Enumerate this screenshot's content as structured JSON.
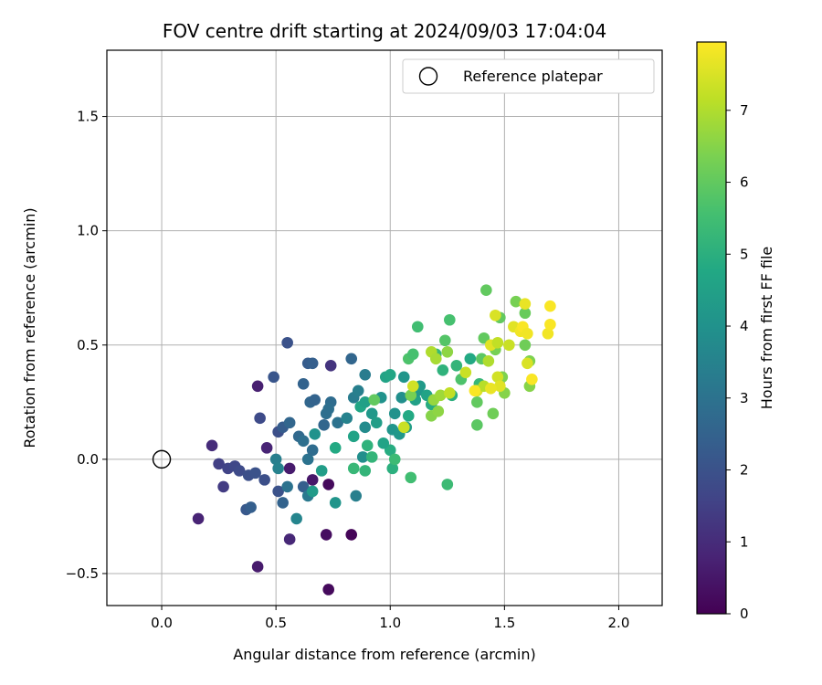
{
  "chart_data": {
    "type": "scatter",
    "title": "FOV centre drift starting at 2024/09/03 17:04:04",
    "xlabel": "Angular distance from reference (arcmin)",
    "ylabel": "Rotation from reference (arcmin)",
    "xlim": [
      -0.24,
      2.19
    ],
    "ylim": [
      -0.64,
      1.79
    ],
    "xticks": [
      0.0,
      0.5,
      1.0,
      1.5,
      2.0
    ],
    "xtick_labels": [
      "0.0",
      "0.5",
      "1.0",
      "1.5",
      "2.0"
    ],
    "yticks": [
      -0.5,
      0.0,
      0.5,
      1.0,
      1.5
    ],
    "ytick_labels": [
      "−0.5",
      "0.0",
      "0.5",
      "1.0",
      "1.5"
    ],
    "grid": true,
    "legend": {
      "placement": "top-right",
      "label": "Reference platepar"
    },
    "reference_point": {
      "x": 0.0,
      "y": 0.0
    },
    "colorbar": {
      "label": "Hours from first FF file",
      "range": [
        0,
        7.95
      ],
      "ticks": [
        0,
        1,
        2,
        3,
        4,
        5,
        6,
        7
      ],
      "colormap": "viridis"
    },
    "points": [
      {
        "x": 0.73,
        "y": -0.57,
        "c": 0.2
      },
      {
        "x": 0.42,
        "y": -0.47,
        "c": 0.6
      },
      {
        "x": 0.56,
        "y": -0.35,
        "c": 0.9
      },
      {
        "x": 0.72,
        "y": -0.33,
        "c": 0.3
      },
      {
        "x": 0.83,
        "y": -0.33,
        "c": 0.1
      },
      {
        "x": 0.16,
        "y": -0.26,
        "c": 0.8
      },
      {
        "x": 0.73,
        "y": -0.11,
        "c": 0.2
      },
      {
        "x": 0.66,
        "y": -0.09,
        "c": 0.5
      },
      {
        "x": 0.56,
        "y": -0.04,
        "c": 0.6
      },
      {
        "x": 0.22,
        "y": 0.06,
        "c": 1.0
      },
      {
        "x": 0.46,
        "y": 0.05,
        "c": 0.8
      },
      {
        "x": 0.42,
        "y": 0.32,
        "c": 0.7
      },
      {
        "x": 0.74,
        "y": 0.41,
        "c": 1.2
      },
      {
        "x": 0.27,
        "y": -0.12,
        "c": 1.4
      },
      {
        "x": 0.25,
        "y": -0.02,
        "c": 1.5
      },
      {
        "x": 0.29,
        "y": -0.04,
        "c": 1.6
      },
      {
        "x": 0.32,
        "y": -0.03,
        "c": 1.7
      },
      {
        "x": 0.34,
        "y": -0.05,
        "c": 1.8
      },
      {
        "x": 0.38,
        "y": -0.07,
        "c": 1.9
      },
      {
        "x": 0.41,
        "y": -0.06,
        "c": 2.0
      },
      {
        "x": 0.37,
        "y": -0.22,
        "c": 2.2
      },
      {
        "x": 0.39,
        "y": -0.21,
        "c": 2.4
      },
      {
        "x": 0.45,
        "y": -0.09,
        "c": 1.9
      },
      {
        "x": 0.51,
        "y": -0.14,
        "c": 2.0
      },
      {
        "x": 0.53,
        "y": -0.19,
        "c": 2.5
      },
      {
        "x": 0.43,
        "y": 0.18,
        "c": 1.8
      },
      {
        "x": 0.49,
        "y": 0.36,
        "c": 2.1
      },
      {
        "x": 0.55,
        "y": 0.51,
        "c": 2.0
      },
      {
        "x": 0.51,
        "y": 0.12,
        "c": 1.9
      },
      {
        "x": 0.53,
        "y": 0.14,
        "c": 2.3
      },
      {
        "x": 0.56,
        "y": 0.16,
        "c": 2.6
      },
      {
        "x": 0.6,
        "y": 0.1,
        "c": 2.7
      },
      {
        "x": 0.62,
        "y": 0.08,
        "c": 2.9
      },
      {
        "x": 0.64,
        "y": 0.0,
        "c": 3.0
      },
      {
        "x": 0.66,
        "y": 0.04,
        "c": 2.8
      },
      {
        "x": 0.62,
        "y": -0.12,
        "c": 2.4
      },
      {
        "x": 0.64,
        "y": -0.16,
        "c": 3.2
      },
      {
        "x": 0.55,
        "y": -0.12,
        "c": 3.0
      },
      {
        "x": 0.5,
        "y": 0.0,
        "c": 3.4
      },
      {
        "x": 0.51,
        "y": -0.04,
        "c": 3.5
      },
      {
        "x": 0.59,
        "y": -0.26,
        "c": 3.6
      },
      {
        "x": 0.62,
        "y": 0.33,
        "c": 2.5
      },
      {
        "x": 0.64,
        "y": 0.42,
        "c": 2.3
      },
      {
        "x": 0.66,
        "y": 0.42,
        "c": 2.4
      },
      {
        "x": 0.65,
        "y": 0.25,
        "c": 2.6
      },
      {
        "x": 0.67,
        "y": 0.26,
        "c": 2.5
      },
      {
        "x": 0.71,
        "y": 0.15,
        "c": 2.6
      },
      {
        "x": 0.72,
        "y": 0.2,
        "c": 2.9
      },
      {
        "x": 0.74,
        "y": 0.25,
        "c": 2.8
      },
      {
        "x": 0.73,
        "y": 0.22,
        "c": 2.9
      },
      {
        "x": 0.77,
        "y": 0.16,
        "c": 3.0
      },
      {
        "x": 0.81,
        "y": 0.18,
        "c": 3.5
      },
      {
        "x": 0.84,
        "y": 0.27,
        "c": 3.3
      },
      {
        "x": 0.83,
        "y": 0.44,
        "c": 2.6
      },
      {
        "x": 0.89,
        "y": 0.37,
        "c": 3.3
      },
      {
        "x": 0.86,
        "y": 0.3,
        "c": 3.4
      },
      {
        "x": 0.89,
        "y": 0.14,
        "c": 3.8
      },
      {
        "x": 0.88,
        "y": 0.01,
        "c": 3.9
      },
      {
        "x": 0.85,
        "y": -0.16,
        "c": 3.4
      },
      {
        "x": 0.76,
        "y": -0.19,
        "c": 4.1
      },
      {
        "x": 0.7,
        "y": -0.05,
        "c": 4.4
      },
      {
        "x": 0.66,
        "y": -0.14,
        "c": 4.3
      },
      {
        "x": 0.67,
        "y": 0.11,
        "c": 4.0
      },
      {
        "x": 0.76,
        "y": 0.05,
        "c": 4.8
      },
      {
        "x": 0.84,
        "y": 0.1,
        "c": 4.6
      },
      {
        "x": 0.87,
        "y": 0.23,
        "c": 4.7
      },
      {
        "x": 0.89,
        "y": 0.25,
        "c": 4.5
      },
      {
        "x": 0.92,
        "y": 0.2,
        "c": 4.2
      },
      {
        "x": 0.94,
        "y": 0.16,
        "c": 4.4
      },
      {
        "x": 0.96,
        "y": 0.27,
        "c": 4.0
      },
      {
        "x": 0.98,
        "y": 0.36,
        "c": 4.6
      },
      {
        "x": 1.0,
        "y": 0.37,
        "c": 4.7
      },
      {
        "x": 1.01,
        "y": 0.13,
        "c": 4.1
      },
      {
        "x": 1.02,
        "y": 0.2,
        "c": 4.0
      },
      {
        "x": 1.04,
        "y": 0.11,
        "c": 4.2
      },
      {
        "x": 1.05,
        "y": 0.27,
        "c": 3.9
      },
      {
        "x": 1.06,
        "y": 0.36,
        "c": 4.1
      },
      {
        "x": 1.08,
        "y": 0.19,
        "c": 4.8
      },
      {
        "x": 1.07,
        "y": 0.14,
        "c": 4.4
      },
      {
        "x": 1.0,
        "y": 0.04,
        "c": 4.9
      },
      {
        "x": 0.97,
        "y": 0.07,
        "c": 4.6
      },
      {
        "x": 0.9,
        "y": 0.06,
        "c": 5.1
      },
      {
        "x": 0.92,
        "y": 0.01,
        "c": 5.2
      },
      {
        "x": 0.84,
        "y": -0.04,
        "c": 5.3
      },
      {
        "x": 0.89,
        "y": -0.05,
        "c": 5.2
      },
      {
        "x": 1.01,
        "y": -0.04,
        "c": 5.0
      },
      {
        "x": 1.02,
        "y": 0.0,
        "c": 5.4
      },
      {
        "x": 1.09,
        "y": -0.08,
        "c": 5.5
      },
      {
        "x": 1.25,
        "y": -0.11,
        "c": 5.4
      },
      {
        "x": 1.08,
        "y": 0.44,
        "c": 5.7
      },
      {
        "x": 1.1,
        "y": 0.46,
        "c": 5.6
      },
      {
        "x": 1.12,
        "y": 0.58,
        "c": 5.5
      },
      {
        "x": 1.11,
        "y": 0.26,
        "c": 4.5
      },
      {
        "x": 1.12,
        "y": 0.3,
        "c": 4.2
      },
      {
        "x": 1.13,
        "y": 0.32,
        "c": 4.3
      },
      {
        "x": 1.16,
        "y": 0.28,
        "c": 4.6
      },
      {
        "x": 1.18,
        "y": 0.24,
        "c": 4.9
      },
      {
        "x": 1.2,
        "y": 0.46,
        "c": 5.3
      },
      {
        "x": 1.23,
        "y": 0.39,
        "c": 5.1
      },
      {
        "x": 1.24,
        "y": 0.52,
        "c": 5.8
      },
      {
        "x": 1.26,
        "y": 0.61,
        "c": 5.6
      },
      {
        "x": 1.27,
        "y": 0.28,
        "c": 5.0
      },
      {
        "x": 1.29,
        "y": 0.41,
        "c": 5.2
      },
      {
        "x": 1.31,
        "y": 0.35,
        "c": 5.7
      },
      {
        "x": 1.35,
        "y": 0.44,
        "c": 4.8
      },
      {
        "x": 1.38,
        "y": 0.15,
        "c": 5.9
      },
      {
        "x": 1.38,
        "y": 0.25,
        "c": 6.0
      },
      {
        "x": 1.39,
        "y": 0.33,
        "c": 5.3
      },
      {
        "x": 1.4,
        "y": 0.44,
        "c": 5.9
      },
      {
        "x": 1.41,
        "y": 0.53,
        "c": 6.0
      },
      {
        "x": 1.42,
        "y": 0.74,
        "c": 6.0
      },
      {
        "x": 1.45,
        "y": 0.2,
        "c": 6.2
      },
      {
        "x": 1.46,
        "y": 0.48,
        "c": 6.3
      },
      {
        "x": 1.48,
        "y": 0.62,
        "c": 6.0
      },
      {
        "x": 1.49,
        "y": 0.36,
        "c": 6.4
      },
      {
        "x": 1.5,
        "y": 0.29,
        "c": 6.5
      },
      {
        "x": 1.55,
        "y": 0.69,
        "c": 6.3
      },
      {
        "x": 1.59,
        "y": 0.64,
        "c": 6.1
      },
      {
        "x": 1.59,
        "y": 0.5,
        "c": 6.2
      },
      {
        "x": 1.61,
        "y": 0.43,
        "c": 6.4
      },
      {
        "x": 1.61,
        "y": 0.32,
        "c": 6.5
      },
      {
        "x": 0.93,
        "y": 0.26,
        "c": 6.0
      },
      {
        "x": 1.09,
        "y": 0.28,
        "c": 6.3
      },
      {
        "x": 1.18,
        "y": 0.19,
        "c": 6.5
      },
      {
        "x": 1.21,
        "y": 0.21,
        "c": 6.6
      },
      {
        "x": 1.19,
        "y": 0.26,
        "c": 6.7
      },
      {
        "x": 1.22,
        "y": 0.28,
        "c": 6.8
      },
      {
        "x": 1.25,
        "y": 0.47,
        "c": 6.6
      },
      {
        "x": 1.18,
        "y": 0.47,
        "c": 7.0
      },
      {
        "x": 1.2,
        "y": 0.44,
        "c": 6.9
      },
      {
        "x": 1.26,
        "y": 0.29,
        "c": 7.2
      },
      {
        "x": 1.1,
        "y": 0.32,
        "c": 7.4
      },
      {
        "x": 1.06,
        "y": 0.14,
        "c": 7.3
      },
      {
        "x": 1.33,
        "y": 0.38,
        "c": 7.3
      },
      {
        "x": 1.38,
        "y": 0.3,
        "c": 7.5
      },
      {
        "x": 1.41,
        "y": 0.32,
        "c": 7.1
      },
      {
        "x": 1.43,
        "y": 0.43,
        "c": 7.0
      },
      {
        "x": 1.44,
        "y": 0.5,
        "c": 7.6
      },
      {
        "x": 1.46,
        "y": 0.63,
        "c": 7.5
      },
      {
        "x": 1.47,
        "y": 0.51,
        "c": 7.2
      },
      {
        "x": 1.52,
        "y": 0.5,
        "c": 7.3
      },
      {
        "x": 1.54,
        "y": 0.58,
        "c": 7.6
      },
      {
        "x": 1.57,
        "y": 0.56,
        "c": 7.8
      },
      {
        "x": 1.58,
        "y": 0.58,
        "c": 7.9
      },
      {
        "x": 1.59,
        "y": 0.68,
        "c": 7.7
      },
      {
        "x": 1.6,
        "y": 0.55,
        "c": 7.8
      },
      {
        "x": 1.6,
        "y": 0.42,
        "c": 7.5
      },
      {
        "x": 1.62,
        "y": 0.35,
        "c": 7.9
      },
      {
        "x": 1.69,
        "y": 0.55,
        "c": 7.8
      },
      {
        "x": 1.7,
        "y": 0.59,
        "c": 7.9
      },
      {
        "x": 1.7,
        "y": 0.67,
        "c": 7.9
      },
      {
        "x": 1.47,
        "y": 0.36,
        "c": 7.4
      },
      {
        "x": 1.48,
        "y": 0.32,
        "c": 7.6
      },
      {
        "x": 1.44,
        "y": 0.31,
        "c": 7.7
      },
      {
        "x": 1.37,
        "y": 0.3,
        "c": 7.9
      }
    ]
  }
}
